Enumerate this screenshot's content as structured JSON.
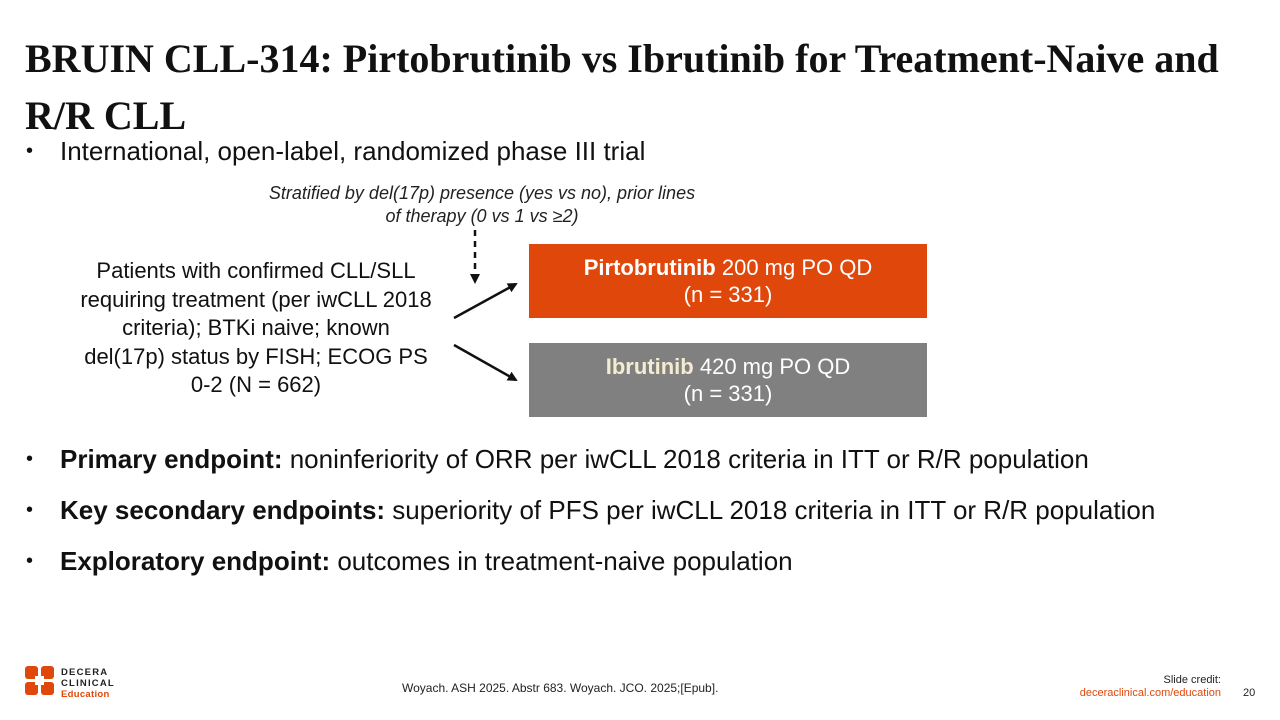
{
  "slide": {
    "title": "BRUIN CLL-314: Pirtobrutinib vs Ibrutinib for Treatment-Naive and R/R CLL",
    "bullets": {
      "design": "International, open-label, randomized phase III trial",
      "primary_label": "Primary endpoint:",
      "primary_text": " noninferiority of ORR per iwCLL 2018 criteria in ITT or R/R population",
      "secondary_label": "Key secondary endpoints:",
      "secondary_text": " superiority of PFS per iwCLL 2018 criteria in ITT or R/R population",
      "exploratory_label": "Exploratory endpoint:",
      "exploratory_text": " outcomes in treatment-naive population"
    },
    "bullet_glyph": "•"
  },
  "diagram": {
    "stratification": "Stratified by del(17p) presence (yes vs no), prior lines of therapy (0 vs 1 vs ≥2)",
    "patients": "Patients with confirmed CLL/SLL requiring treatment (per iwCLL 2018 criteria); BTKi naive; known del(17p) status by FISH; ECOG PS 0-2 (N = 662)",
    "arm1": {
      "drug": "Pirtobrutinib",
      "dose": " 200 mg PO QD",
      "n": "(n = 331)",
      "color": "#e0470b"
    },
    "arm2": {
      "drug": "Ibrutinib",
      "dose": " 420 mg PO QD",
      "n": "(n = 331)",
      "color": "#808080"
    }
  },
  "footer": {
    "logo_line1": "DECERA",
    "logo_line2": "CLINICAL",
    "logo_line3": "Education",
    "citation": "Woyach. ASH 2025. Abstr 683. Woyach. JCO. 2025;[Epub].",
    "credit_label": "Slide credit:",
    "credit_url": "deceraclinical.com/education",
    "page_number": "20"
  },
  "colors": {
    "accent": "#e0470b",
    "gray_arm": "#808080",
    "text": "#111111"
  },
  "icons": {
    "logo": "decera-logo-icon"
  }
}
